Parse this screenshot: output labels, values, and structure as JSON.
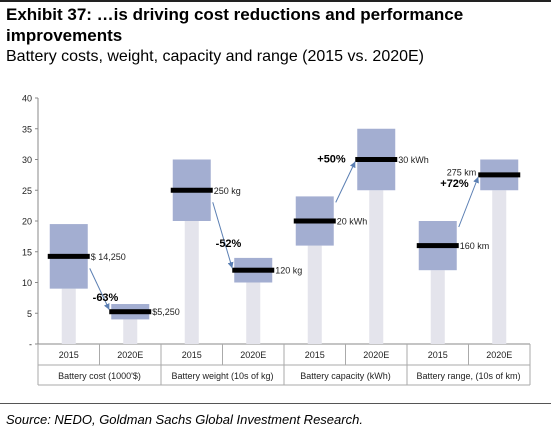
{
  "header": {
    "title": "Exhibit 37: …is driving cost reductions and performance improvements",
    "subtitle": "Battery costs, weight, capacity and range (2015 vs. 2020E)"
  },
  "footer": {
    "source": "Source: NEDO, Goldman Sachs Global Investment Research."
  },
  "chart_data": {
    "type": "floating-bar",
    "y_ticks": [
      "40",
      "35",
      "30",
      "25",
      "20",
      "15",
      "10",
      "5",
      "-"
    ],
    "ylim": [
      0,
      40
    ],
    "grid": false,
    "legend": "none",
    "colors": {
      "box": "#a3aed1",
      "stem": "#e4e4ec",
      "marker": "#000000",
      "arrow": "#5b7fb3"
    },
    "categories": [
      "2015",
      "2020E",
      "2015",
      "2020E",
      "2015",
      "2020E",
      "2015",
      "2020E"
    ],
    "groups": [
      {
        "label": "Battery cost (1000'$)",
        "change": "-63%"
      },
      {
        "label": "Battery weight (10s of kg)",
        "change": "-52%"
      },
      {
        "label": "Battery capacity (kWh)",
        "change": "+50%"
      },
      {
        "label": "Battery range, (10s of km)",
        "change": "+72%"
      }
    ],
    "bars": [
      {
        "low": 9,
        "high": 19.5,
        "value": 14.25,
        "label": "$ 14,250"
      },
      {
        "low": 4,
        "high": 6.5,
        "value": 5.25,
        "label": "$5,250"
      },
      {
        "low": 20,
        "high": 30,
        "value": 25,
        "label": "250 kg"
      },
      {
        "low": 10,
        "high": 14,
        "value": 12,
        "label": "120 kg"
      },
      {
        "low": 16,
        "high": 24,
        "value": 20,
        "label": "20 kWh"
      },
      {
        "low": 25,
        "high": 35,
        "value": 30,
        "label": "30 kWh"
      },
      {
        "low": 12,
        "high": 20,
        "value": 16,
        "label": "160 km"
      },
      {
        "low": 25,
        "high": 30,
        "value": 27.5,
        "label": "275 km"
      }
    ]
  }
}
